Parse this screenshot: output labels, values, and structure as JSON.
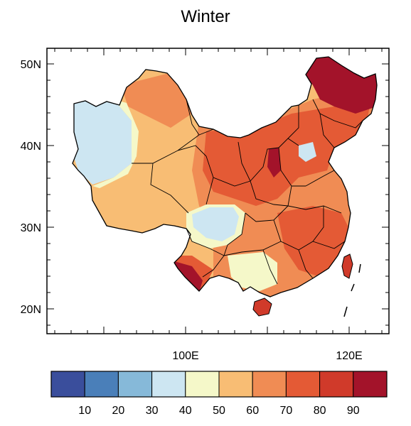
{
  "title": "Winter",
  "axes": {
    "y_ticks": [
      {
        "label": "50N",
        "value": 50
      },
      {
        "label": "40N",
        "value": 40
      },
      {
        "label": "30N",
        "value": 30
      },
      {
        "label": "20N",
        "value": 20
      }
    ],
    "x_ticks": [
      {
        "label": "100E",
        "value": 100
      },
      {
        "label": "120E",
        "value": 120
      }
    ],
    "lon_range": [
      73.5,
      135
    ],
    "lat_range": [
      17,
      53
    ]
  },
  "colorbar": {
    "colors": [
      "#3a4e9c",
      "#4a7fb9",
      "#86b9d9",
      "#cde6f2",
      "#f5f8c9",
      "#f8bd74",
      "#f08c54",
      "#e45a35",
      "#d03a2a",
      "#a3132a"
    ],
    "labels": [
      "10",
      "20",
      "30",
      "40",
      "50",
      "60",
      "70",
      "80",
      "90"
    ]
  }
}
